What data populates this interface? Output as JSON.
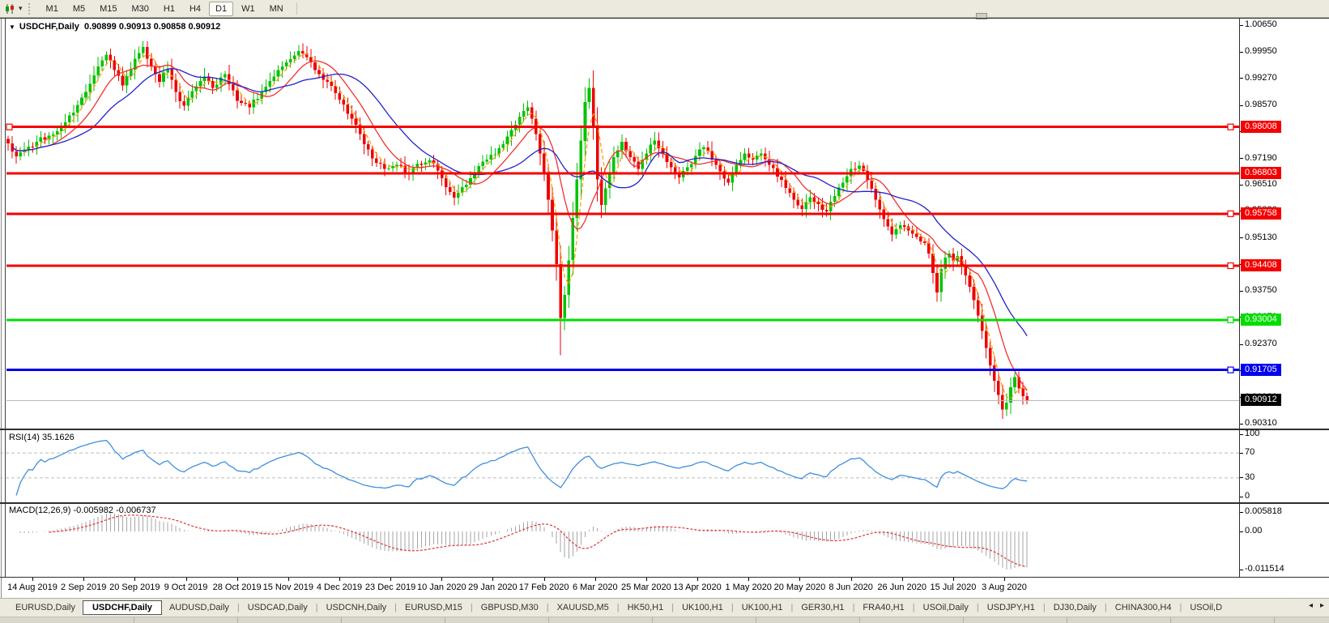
{
  "header": {
    "collapse_icon": "▼"
  },
  "toolbar": {
    "caret": "▾",
    "timeframes": [
      "M1",
      "M5",
      "M15",
      "M30",
      "H1",
      "H4",
      "D1",
      "W1",
      "MN"
    ],
    "active": "D1"
  },
  "tabs": {
    "items": [
      "EURUSD,Daily",
      "USDCHF,Daily",
      "AUDUSD,Daily",
      "USDCAD,Daily",
      "USDCNH,Daily",
      "EURUSD,M15",
      "GBPUSD,M30",
      "XAUUSD,M5",
      "HK50,H1",
      "UK100,H1",
      "UK100,H1",
      "GER30,H1",
      "FRA40,H1",
      "USOil,Daily",
      "USDJPY,H1",
      "DJ30,Daily",
      "CHINA300,H4",
      "USOil,D"
    ],
    "active_index": 1,
    "scroll_left": "◂",
    "scroll_right": "▸"
  },
  "chart_data": {
    "type": "candlestick",
    "title": "USDCHF,Daily",
    "ohlc_display": "0.90899 0.90913 0.90858 0.90912",
    "x_labels": [
      "14 Aug 2019",
      "2 Sep 2019",
      "20 Sep 2019",
      "9 Oct 2019",
      "28 Oct 2019",
      "15 Nov 2019",
      "4 Dec 2019",
      "23 Dec 2019",
      "10 Jan 2020",
      "29 Jan 2020",
      "17 Feb 2020",
      "6 Mar 2020",
      "25 Mar 2020",
      "13 Apr 2020",
      "1 May 2020",
      "20 May 2020",
      "8 Jun 2020",
      "26 Jun 2020",
      "15 Jul 2020",
      "3 Aug 2020"
    ],
    "y_ticks": [
      "1.00650",
      "0.99950",
      "0.99270",
      "0.98570",
      "0.97890",
      "0.97190",
      "0.96510",
      "0.95830",
      "0.95130",
      "0.94450",
      "0.93750",
      "0.93070",
      "0.92370",
      "0.91690",
      "0.90990",
      "0.90310"
    ],
    "y_range": {
      "price_at_top_tick": 1.0065,
      "price_at_bottom_tick": 0.9031
    },
    "horizontal_lines": [
      {
        "label": "0.98008",
        "price": 0.98008,
        "color": "#f40000",
        "right_marker": true,
        "left_marker": true
      },
      {
        "label": "0.96803",
        "price": 0.96803,
        "color": "#f40000",
        "right_marker": false,
        "left_marker": false
      },
      {
        "label": "0.95758",
        "price": 0.95758,
        "color": "#f40000",
        "right_marker": true,
        "left_marker": false
      },
      {
        "label": "0.94408",
        "price": 0.94408,
        "color": "#f40000",
        "right_marker": true,
        "left_marker": false
      },
      {
        "label": "0.93004",
        "price": 0.93004,
        "color": "#00dd00",
        "right_marker": true,
        "left_marker": false
      },
      {
        "label": "0.91705",
        "price": 0.91705,
        "color": "#0000ee",
        "right_marker": true,
        "left_marker": false
      }
    ],
    "current_price": 0.90912,
    "current_price_label": "0.90912",
    "candles": {
      "count": 250,
      "up_color": "#00c300",
      "down_color": "#ef0000",
      "close_anchors": [
        [
          0,
          0.9758
        ],
        [
          2,
          0.9725
        ],
        [
          4,
          0.9742
        ],
        [
          7,
          0.9762
        ],
        [
          10,
          0.9778
        ],
        [
          13,
          0.98
        ],
        [
          16,
          0.9838
        ],
        [
          19,
          0.9892
        ],
        [
          22,
          0.9958
        ],
        [
          24,
          0.9988
        ],
        [
          26,
          0.9948
        ],
        [
          28,
          0.9908
        ],
        [
          31,
          0.9978
        ],
        [
          33,
          1.0008
        ],
        [
          35,
          0.9958
        ],
        [
          37,
          0.9918
        ],
        [
          39,
          0.9952
        ],
        [
          41,
          0.9892
        ],
        [
          43,
          0.9856
        ],
        [
          46,
          0.9906
        ],
        [
          48,
          0.9932
        ],
        [
          50,
          0.9902
        ],
        [
          53,
          0.9938
        ],
        [
          56,
          0.9868
        ],
        [
          59,
          0.9852
        ],
        [
          62,
          0.9892
        ],
        [
          65,
          0.9932
        ],
        [
          68,
          0.9968
        ],
        [
          71,
          0.9998
        ],
        [
          73,
          0.9982
        ],
        [
          75,
          0.9948
        ],
        [
          78,
          0.9918
        ],
        [
          81,
          0.9872
        ],
        [
          84,
          0.9822
        ],
        [
          86,
          0.9782
        ],
        [
          88,
          0.9742
        ],
        [
          90,
          0.9708
        ],
        [
          92,
          0.9692
        ],
        [
          95,
          0.9702
        ],
        [
          98,
          0.968
        ],
        [
          100,
          0.9706
        ],
        [
          103,
          0.9714
        ],
        [
          106,
          0.9668
        ],
        [
          109,
          0.9617
        ],
        [
          111,
          0.9645
        ],
        [
          114,
          0.9684
        ],
        [
          117,
          0.9716
        ],
        [
          120,
          0.9746
        ],
        [
          122,
          0.9776
        ],
        [
          124,
          0.9806
        ],
        [
          126,
          0.9842
        ],
        [
          127,
          0.9852
        ],
        [
          128,
          0.9822
        ],
        [
          129,
          0.9782
        ],
        [
          130,
          0.9732
        ],
        [
          131,
          0.9682
        ],
        [
          132,
          0.9612
        ],
        [
          133,
          0.9532
        ],
        [
          134,
          0.9445
        ],
        [
          135,
          0.9305
        ],
        [
          136,
          0.9365
        ],
        [
          137,
          0.9455
        ],
        [
          138,
          0.9565
        ],
        [
          139,
          0.9665
        ],
        [
          140,
          0.9765
        ],
        [
          141,
          0.9865
        ],
        [
          142,
          0.9902
        ],
        [
          143,
          0.9805
        ],
        [
          144,
          0.9665
        ],
        [
          145,
          0.9598
        ],
        [
          146,
          0.9642
        ],
        [
          147,
          0.9682
        ],
        [
          148,
          0.9722
        ],
        [
          150,
          0.9762
        ],
        [
          152,
          0.9722
        ],
        [
          154,
          0.9692
        ],
        [
          156,
          0.9732
        ],
        [
          158,
          0.9766
        ],
        [
          160,
          0.9732
        ],
        [
          162,
          0.9696
        ],
        [
          164,
          0.967
        ],
        [
          166,
          0.9696
        ],
        [
          168,
          0.9726
        ],
        [
          170,
          0.9748
        ],
        [
          172,
          0.9716
        ],
        [
          174,
          0.9686
        ],
        [
          176,
          0.9656
        ],
        [
          178,
          0.9702
        ],
        [
          180,
          0.9732
        ],
        [
          182,
          0.9716
        ],
        [
          184,
          0.9732
        ],
        [
          186,
          0.9702
        ],
        [
          188,
          0.9672
        ],
        [
          190,
          0.9642
        ],
        [
          192,
          0.9612
        ],
        [
          194,
          0.9588
        ],
        [
          196,
          0.9618
        ],
        [
          198,
          0.96
        ],
        [
          200,
          0.9582
        ],
        [
          202,
          0.9622
        ],
        [
          204,
          0.9656
        ],
        [
          206,
          0.9692
        ],
        [
          208,
          0.97
        ],
        [
          210,
          0.9662
        ],
        [
          212,
          0.9612
        ],
        [
          214,
          0.9562
        ],
        [
          216,
          0.9522
        ],
        [
          218,
          0.9546
        ],
        [
          220,
          0.9532
        ],
        [
          222,
          0.9516
        ],
        [
          224,
          0.95
        ],
        [
          225,
          0.9472
        ],
        [
          226,
          0.9422
        ],
        [
          227,
          0.9372
        ],
        [
          228,
          0.9432
        ],
        [
          229,
          0.9462
        ],
        [
          230,
          0.9472
        ],
        [
          231,
          0.9452
        ],
        [
          232,
          0.9466
        ],
        [
          233,
          0.9442
        ],
        [
          234,
          0.9416
        ],
        [
          235,
          0.9386
        ],
        [
          236,
          0.9352
        ],
        [
          237,
          0.9312
        ],
        [
          238,
          0.9272
        ],
        [
          239,
          0.9227
        ],
        [
          240,
          0.9182
        ],
        [
          241,
          0.9142
        ],
        [
          242,
          0.9106
        ],
        [
          243,
          0.9068
        ],
        [
          244,
          0.9086
        ],
        [
          245,
          0.9126
        ],
        [
          246,
          0.9152
        ],
        [
          247,
          0.9122
        ],
        [
          248,
          0.9102
        ],
        [
          249,
          0.90912
        ]
      ]
    },
    "moving_averages": [
      {
        "period": 4,
        "color": "#ffa000",
        "style": "dash"
      },
      {
        "period": 10,
        "color": "#f23030",
        "style": "solid"
      },
      {
        "period": 21,
        "color": "#2222cc",
        "style": "solid"
      }
    ],
    "rsi": {
      "label": "RSI(14) 35.1626",
      "period": 14,
      "value": 35.1626,
      "levels": [
        "100",
        "70",
        "30",
        "0"
      ],
      "dashed_levels": [
        70,
        30
      ],
      "line_color": "#3e8ede"
    },
    "macd": {
      "label": "MACD(12,26,9) -0.005982 -0.006737",
      "fast": 12,
      "slow": 26,
      "signal_period": 9,
      "values": [
        -0.005982,
        -0.006737
      ],
      "axis_labels": [
        "0.005818",
        "0.00",
        "-0.011514"
      ],
      "histogram_color": "#a6a6a6",
      "signal_color": "#e53030"
    }
  }
}
